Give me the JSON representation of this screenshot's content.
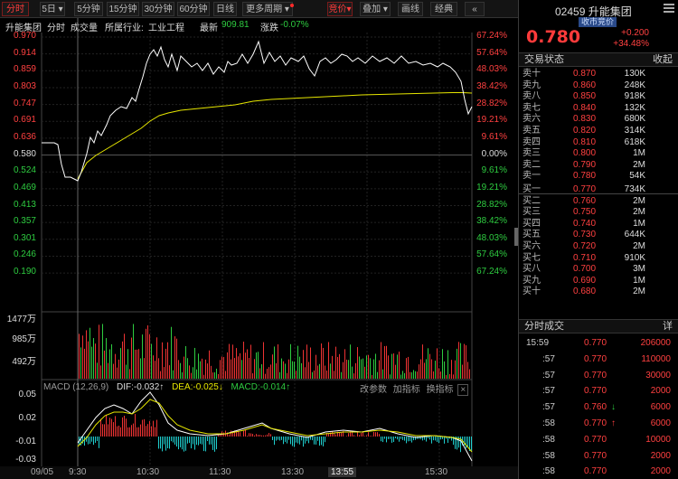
{
  "toolbar": {
    "tabs": [
      "分时",
      "5日",
      "5分钟",
      "15分钟",
      "30分钟",
      "60分钟",
      "日线",
      "更多周期"
    ],
    "right_buttons": [
      "竞价",
      "叠加",
      "画线",
      "经典",
      "«"
    ]
  },
  "info": {
    "name": "升能集团",
    "type": "分时",
    "vol_label": "成交量",
    "industry_label": "所属行业:",
    "industry": "工业工程",
    "latest_label": "最新",
    "latest": "909.81",
    "change_label": "涨跌",
    "change": "-0.07%"
  },
  "axes": {
    "price_ticks": [
      "0.970",
      "0.914",
      "0.859",
      "0.803",
      "0.747",
      "0.691",
      "0.636",
      "0.580",
      "0.524",
      "0.469",
      "0.413",
      "0.357",
      "0.301",
      "0.246",
      "0.190"
    ],
    "pct_ticks": [
      "67.24%",
      "57.64%",
      "48.03%",
      "38.42%",
      "28.82%",
      "19.21%",
      "9.61%",
      "0.00%",
      "9.61%",
      "19.21%",
      "28.82%",
      "38.42%",
      "48.03%",
      "57.64%",
      "67.24%"
    ],
    "vol_ticks": [
      "1477万",
      "985万",
      "492万"
    ],
    "macd_ticks": [
      "0.05",
      "0.02",
      "-0.01",
      "-0.03"
    ],
    "time_ticks": [
      "09/05",
      "9:30",
      "10:30",
      "11:30",
      "13:30",
      "13:55",
      "15:30"
    ]
  },
  "macd_header": {
    "title": "MACD (12,26,9)",
    "dif": "DIF:-0.032↑",
    "dea": "DEA:-0.025↓",
    "macd": "MACD:-0.014↑",
    "links": [
      "改参数",
      "加指标",
      "换指标"
    ]
  },
  "quote": {
    "code": "02459",
    "name": "升能集团",
    "badge": "收市竞价",
    "price": "0.780",
    "change": "+0.200",
    "change_pct": "+34.48%"
  },
  "orderbook": {
    "title": "交易状态",
    "collapse": "收起",
    "asks": [
      {
        "label": "卖十",
        "price": "0.870",
        "vol": "130K"
      },
      {
        "label": "卖九",
        "price": "0.860",
        "vol": "248K"
      },
      {
        "label": "卖八",
        "price": "0.850",
        "vol": "918K"
      },
      {
        "label": "卖七",
        "price": "0.840",
        "vol": "132K"
      },
      {
        "label": "卖六",
        "price": "0.830",
        "vol": "680K"
      },
      {
        "label": "卖五",
        "price": "0.820",
        "vol": "314K"
      },
      {
        "label": "卖四",
        "price": "0.810",
        "vol": "618K"
      },
      {
        "label": "卖三",
        "price": "0.800",
        "vol": "1M"
      },
      {
        "label": "卖二",
        "price": "0.790",
        "vol": "2M"
      },
      {
        "label": "卖一",
        "price": "0.780",
        "vol": "54K"
      }
    ],
    "bids": [
      {
        "label": "买一",
        "price": "0.770",
        "vol": "734K"
      },
      {
        "label": "买二",
        "price": "0.760",
        "vol": "2M"
      },
      {
        "label": "买三",
        "price": "0.750",
        "vol": "2M"
      },
      {
        "label": "买四",
        "price": "0.740",
        "vol": "1M"
      },
      {
        "label": "买五",
        "price": "0.730",
        "vol": "644K"
      },
      {
        "label": "买六",
        "price": "0.720",
        "vol": "2M"
      },
      {
        "label": "买七",
        "price": "0.710",
        "vol": "910K"
      },
      {
        "label": "买八",
        "price": "0.700",
        "vol": "3M"
      },
      {
        "label": "买九",
        "price": "0.690",
        "vol": "1M"
      },
      {
        "label": "买十",
        "price": "0.680",
        "vol": "2M"
      }
    ]
  },
  "trades": {
    "title": "分时成交",
    "detail": "详",
    "rows": [
      {
        "time": "15:59",
        "price": "0.770",
        "arrow": "",
        "vol": "206000"
      },
      {
        "time": ":57",
        "price": "0.770",
        "arrow": "",
        "vol": "110000"
      },
      {
        "time": ":57",
        "price": "0.770",
        "arrow": "",
        "vol": "30000"
      },
      {
        "time": ":57",
        "price": "0.770",
        "arrow": "",
        "vol": "2000"
      },
      {
        "time": ":57",
        "price": "0.760",
        "arrow": "↓",
        "vol": "6000"
      },
      {
        "time": ":58",
        "price": "0.770",
        "arrow": "↑",
        "vol": "6000"
      },
      {
        "time": ":58",
        "price": "0.770",
        "arrow": "",
        "vol": "10000"
      },
      {
        "time": ":58",
        "price": "0.770",
        "arrow": "",
        "vol": "2000"
      },
      {
        "time": ":58",
        "price": "0.770",
        "arrow": "",
        "vol": "2000"
      }
    ]
  },
  "colors": {
    "up": "#ff4040",
    "down": "#2ecc40",
    "price_line": "#ffffff",
    "avg_line": "#e6e600"
  }
}
